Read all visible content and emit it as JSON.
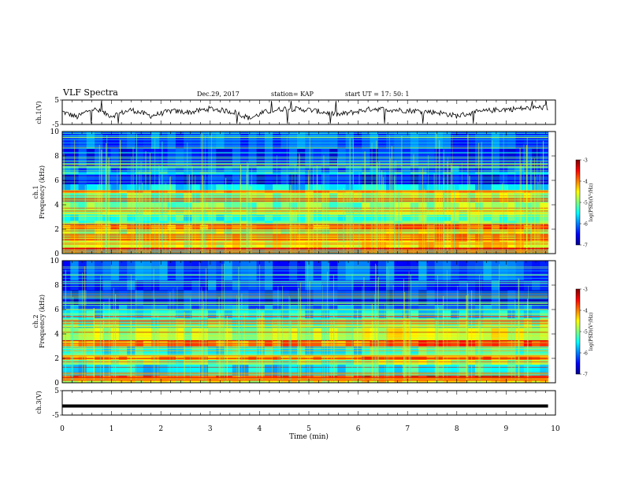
{
  "header": {
    "title": "VLF Spectra",
    "date": "Dec.29, 2017",
    "station": "station= KAP",
    "start": "start  UT =   17: 50: 1"
  },
  "chart_data": [
    {
      "type": "line",
      "name": "ch1-waveform",
      "ylabel": "ch.1(V)",
      "ylim": [
        -5,
        5
      ],
      "yticks": [
        "5",
        "-5"
      ],
      "xlim": [
        0,
        10
      ],
      "x_end": 9.85,
      "trend": [
        [
          0,
          0.2
        ],
        [
          0.3,
          -2
        ],
        [
          0.6,
          1.5
        ],
        [
          1,
          -1.5
        ],
        [
          1.4,
          1
        ],
        [
          1.8,
          -1.5
        ],
        [
          2.2,
          0.5
        ],
        [
          2.6,
          0
        ],
        [
          3,
          1.5
        ],
        [
          3.5,
          0
        ],
        [
          3.8,
          -2.5
        ],
        [
          4.1,
          0
        ],
        [
          4.5,
          1.5
        ],
        [
          5,
          1
        ],
        [
          5.3,
          0
        ],
        [
          5.6,
          -1
        ],
        [
          5.9,
          0
        ],
        [
          6.3,
          1.5
        ],
        [
          6.7,
          1
        ],
        [
          7.2,
          0.5
        ],
        [
          7.6,
          0
        ],
        [
          8,
          -1.5
        ],
        [
          8.4,
          0
        ],
        [
          8.8,
          1
        ],
        [
          9.3,
          1.5
        ],
        [
          9.8,
          2
        ]
      ]
    },
    {
      "type": "heatmap",
      "name": "ch1-spectrogram",
      "ylabel": "ch.1\nFrequency (kHz)",
      "ylim": [
        0,
        10
      ],
      "yticks": [
        "0",
        "2",
        "4",
        "6",
        "8",
        "10"
      ],
      "xlim": [
        0,
        10
      ],
      "x_end": 9.85,
      "colorbar": {
        "label": "log(PSD)(V²/Hz)",
        "range": [
          -7,
          -3
        ],
        "ticks": [
          "-3",
          "-4",
          "-5",
          "-6",
          "-7"
        ]
      },
      "bands": [
        [
          0,
          0.4,
          0.45
        ],
        [
          0.4,
          0.5,
          0.9
        ],
        [
          0.5,
          1.0,
          0.6
        ],
        [
          1.0,
          1.6,
          0.62
        ],
        [
          1.6,
          2.0,
          0.55
        ],
        [
          2.0,
          2.4,
          0.72
        ],
        [
          2.4,
          2.7,
          0.45
        ],
        [
          2.7,
          3.2,
          0.4
        ],
        [
          3.2,
          3.6,
          0.5
        ],
        [
          3.6,
          4.2,
          0.48
        ],
        [
          4.2,
          5.0,
          0.5
        ],
        [
          5.0,
          5.2,
          0.7
        ],
        [
          5.2,
          5.7,
          0.35
        ],
        [
          5.7,
          6.5,
          0.12
        ],
        [
          6.5,
          6.7,
          0.4
        ],
        [
          6.7,
          7.2,
          0.22
        ],
        [
          7.2,
          8.6,
          0.15
        ],
        [
          8.6,
          10.0,
          0.2
        ]
      ]
    },
    {
      "type": "heatmap",
      "name": "ch2-spectrogram",
      "ylabel": "ch.2\nFrequency (kHz)",
      "ylim": [
        0,
        10
      ],
      "yticks": [
        "0",
        "2",
        "4",
        "6",
        "8",
        "10"
      ],
      "xlim": [
        0,
        10
      ],
      "x_end": 9.85,
      "colorbar": {
        "label": "log(PSD)(V²/Hz)",
        "range": [
          -7,
          -3
        ],
        "ticks": [
          "-3",
          "-4",
          "-5",
          "-6",
          "-7"
        ]
      },
      "bands": [
        [
          0,
          0.4,
          0.6
        ],
        [
          0.4,
          0.6,
          0.85
        ],
        [
          0.6,
          1.5,
          0.35
        ],
        [
          1.5,
          1.9,
          0.5
        ],
        [
          1.9,
          2.2,
          0.7
        ],
        [
          2.2,
          3.0,
          0.38
        ],
        [
          3.0,
          3.5,
          0.75
        ],
        [
          3.5,
          4.5,
          0.55
        ],
        [
          4.5,
          5.3,
          0.45
        ],
        [
          5.3,
          6.0,
          0.35
        ],
        [
          6.0,
          6.4,
          0.22
        ],
        [
          6.4,
          7.6,
          0.12
        ],
        [
          7.6,
          8.4,
          0.18
        ],
        [
          8.4,
          10.0,
          0.2
        ]
      ]
    },
    {
      "type": "line",
      "name": "ch3-waveform",
      "ylabel": "ch.3(V)",
      "ylim": [
        -5,
        5
      ],
      "yticks": [
        "5",
        "-5"
      ],
      "xlim": [
        0,
        10
      ],
      "x_end": 9.85,
      "constant": -1.3
    }
  ],
  "xaxis": {
    "label": "Time (min)",
    "ticks": [
      "0",
      "1",
      "2",
      "3",
      "4",
      "5",
      "6",
      "7",
      "8",
      "9",
      "10"
    ]
  }
}
